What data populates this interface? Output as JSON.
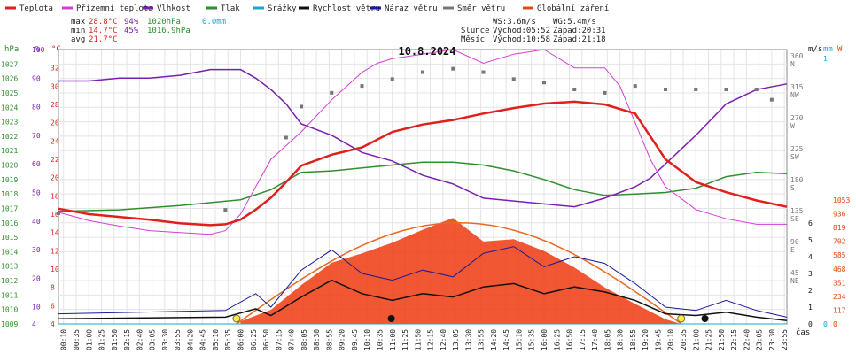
{
  "legend": [
    {
      "label": "Teplota",
      "color": "#e0201c"
    },
    {
      "label": "Přízemní teplota",
      "color": "#d43cd8"
    },
    {
      "label": "Vlhkost",
      "color": "#7a1fb0"
    },
    {
      "label": "Tlak",
      "color": "#2f8f2f"
    },
    {
      "label": "Srážky",
      "color": "#19a8d0"
    },
    {
      "label": "Rychlost větru",
      "color": "#111111"
    },
    {
      "label": "Náraz větru",
      "color": "#1a1a9c"
    },
    {
      "label": "Směr větru",
      "color": "#777777"
    },
    {
      "label": "Globální záření",
      "color": "#e04a10"
    }
  ],
  "stats": {
    "max": {
      "label": "max",
      "temp": "28.8°C",
      "hum": "94%",
      "press": "1020hPa",
      "rain": "0.0mm"
    },
    "min": {
      "label": "min",
      "temp": "14.7°C",
      "hum": "45%",
      "press": "1016.9hPa"
    },
    "avg": {
      "label": "avg",
      "temp": "21.7°C"
    }
  },
  "wind_info": {
    "ws": "WS:3.6m/s",
    "wg": "WG:5.4m/s"
  },
  "sun_info": {
    "label": "Slunce",
    "rise": "Východ:05:52",
    "set": "Západ:20:31"
  },
  "moon_info": {
    "label": "Měsíc",
    "rise": "Východ:10:58",
    "set": "Západ:21:18"
  },
  "chart_data": {
    "type": "line",
    "title": "10.8.2024",
    "xlabel": "čas",
    "x_ticks": [
      "00:10",
      "00:35",
      "01:00",
      "01:25",
      "01:50",
      "02:15",
      "02:40",
      "03:05",
      "03:30",
      "03:55",
      "04:20",
      "04:45",
      "05:10",
      "05:35",
      "06:00",
      "06:25",
      "06:50",
      "07:15",
      "07:40",
      "08:05",
      "08:30",
      "08:55",
      "09:20",
      "09:45",
      "10:10",
      "10:35",
      "11:00",
      "11:25",
      "11:50",
      "12:15",
      "12:40",
      "13:05",
      "13:30",
      "13:55",
      "14:20",
      "14:45",
      "15:10",
      "15:35",
      "16:00",
      "16:25",
      "16:50",
      "17:15",
      "17:40",
      "18:05",
      "18:30",
      "18:55",
      "19:20",
      "19:45",
      "20:10",
      "20:35",
      "21:00",
      "21:25",
      "21:50",
      "22:15",
      "22:40",
      "23:05",
      "23:30",
      "23:55"
    ],
    "x_tick_labels": [
      "00:10",
      "00:35",
      "01:00",
      "01:25",
      "01:50",
      "02:15",
      "02:40",
      "03:05",
      "03:30",
      "03:55",
      "04:20",
      "04:45",
      "05:10",
      "05:35",
      "06:00",
      "06:25",
      "06:50",
      "07:15",
      "07:40",
      "08:05",
      "08:30",
      "08:55",
      "09:20",
      "09:45",
      "10:10",
      "10:35",
      "11:00",
      "11:25",
      "11:50",
      "12:15",
      "12:40",
      "13:05",
      "13:30",
      "13:55",
      "14:20",
      "14:45",
      "15:10",
      "15:35",
      "16:00",
      "16:25",
      "16:50",
      "17:15",
      "17:40",
      "18:05",
      "18:30",
      "18:55",
      "19:20",
      "19:45",
      "20:10",
      "20:35",
      "21:00",
      "21:25",
      "21:50",
      "22:15",
      "22:40",
      "23:05",
      "23:30",
      "23:55"
    ],
    "axes": {
      "pressure": {
        "unit": "hPa",
        "range": [
          1009,
          1028
        ],
        "ticks": [
          "1009",
          "1010",
          "1011",
          "1012",
          "1013",
          "1014",
          "1015",
          "1016",
          "1017",
          "1018",
          "1019",
          "1020",
          "1021",
          "1022",
          "1023",
          "1024",
          "1025",
          "1026",
          "1027"
        ]
      },
      "humidity": {
        "unit": "%",
        "range": [
          4,
          100
        ],
        "ticks": [
          "4",
          "8",
          "12",
          "16",
          "20",
          "24",
          "28",
          "32",
          "36",
          "40",
          "44",
          "48",
          "52",
          "56",
          "60",
          "64",
          "68",
          "72",
          "76",
          "80",
          "84",
          "88",
          "92",
          "96",
          "100"
        ],
        "shown": [
          "4",
          "10",
          "20",
          "30",
          "40",
          "50",
          "60",
          "70",
          "80",
          "90",
          "100"
        ]
      },
      "temperature": {
        "unit": "°C",
        "range": [
          4,
          34
        ],
        "ticks": [
          "4",
          "6",
          "8",
          "10",
          "12",
          "14",
          "16",
          "18",
          "20",
          "22",
          "24",
          "26",
          "28",
          "30",
          "32"
        ]
      },
      "wind_dir": {
        "unit": "",
        "ticks": [
          {
            "deg": "45",
            "dir": "NE"
          },
          {
            "deg": "90",
            "dir": "E"
          },
          {
            "deg": "135",
            "dir": "SE"
          },
          {
            "deg": "180",
            "dir": "S"
          },
          {
            "deg": "225",
            "dir": "SW"
          },
          {
            "deg": "270",
            "dir": "W"
          },
          {
            "deg": "315",
            "dir": "NW"
          },
          {
            "deg": "360",
            "dir": "N"
          }
        ]
      },
      "wind_speed": {
        "unit": "m/s",
        "ticks": [
          "0",
          "1",
          "2",
          "3",
          "4",
          "5",
          "6"
        ]
      },
      "rain": {
        "unit": "mm",
        "ticks": [
          "0",
          "1"
        ]
      },
      "radiation": {
        "unit": "W",
        "ticks": [
          "0",
          "117",
          "234",
          "351",
          "468",
          "585",
          "702",
          "819",
          "936",
          "1053"
        ]
      }
    },
    "series": [
      {
        "name": "Teplota",
        "unit": "°C",
        "x": [
          0,
          1,
          2,
          3,
          4,
          5,
          5.5,
          6,
          6.5,
          7,
          7.5,
          8,
          9,
          10,
          11,
          12,
          13,
          14,
          15,
          16,
          17,
          18,
          19,
          20,
          21,
          22,
          23,
          24
        ],
        "y": [
          16.6,
          16.0,
          15.7,
          15.4,
          15.0,
          14.8,
          14.9,
          15.4,
          16.5,
          17.8,
          19.5,
          21.3,
          22.5,
          23.3,
          25.0,
          25.8,
          26.3,
          27.0,
          27.6,
          28.1,
          28.3,
          28.0,
          27.0,
          22.0,
          19.5,
          18.4,
          17.5,
          16.8
        ]
      },
      {
        "name": "Přízemní teplota",
        "unit": "°C",
        "x": [
          0,
          1,
          2,
          3,
          4,
          5,
          5.5,
          6,
          6.5,
          7,
          7.5,
          8,
          9,
          9.5,
          10,
          10.5,
          11,
          12,
          13,
          14,
          15,
          16,
          17,
          18,
          18.5,
          19,
          19.5,
          20,
          21,
          22,
          23,
          24
        ],
        "y": [
          16.2,
          15.3,
          14.7,
          14.2,
          14.0,
          13.8,
          14.2,
          16.0,
          19.0,
          22.0,
          23.5,
          25.0,
          28.5,
          30.0,
          31.5,
          32.5,
          33.0,
          33.5,
          34.0,
          32.5,
          33.5,
          34.0,
          32.0,
          32.0,
          30.0,
          26.0,
          22.0,
          19.0,
          16.5,
          15.5,
          14.9,
          14.9
        ]
      },
      {
        "name": "Vlhkost",
        "unit": "%",
        "x": [
          0,
          1,
          2,
          3,
          4,
          5,
          6,
          6.5,
          7,
          7.5,
          8,
          9,
          10,
          11,
          12,
          13,
          14,
          15,
          16,
          17,
          18,
          19,
          19.5,
          20,
          21,
          22,
          23,
          24
        ],
        "y": [
          89,
          89,
          90,
          90,
          91,
          93,
          93,
          90,
          86,
          81,
          74,
          70,
          64,
          61,
          56,
          53,
          48,
          47,
          46,
          45,
          48,
          52,
          55,
          60,
          70,
          81,
          86,
          88
        ]
      },
      {
        "name": "Tlak",
        "unit": "hPa",
        "x": [
          0,
          2,
          4,
          6,
          7,
          8,
          9,
          10,
          11,
          12,
          13,
          14,
          15,
          16,
          17,
          18,
          19,
          20,
          21,
          22,
          23,
          24
        ],
        "y": [
          1016.8,
          1016.9,
          1017.2,
          1017.6,
          1018.3,
          1019.5,
          1019.6,
          1019.8,
          1020.0,
          1020.2,
          1020.2,
          1020.0,
          1019.6,
          1019.0,
          1018.3,
          1017.9,
          1018.0,
          1018.1,
          1018.4,
          1019.2,
          1019.5,
          1019.4
        ]
      },
      {
        "name": "Srážky",
        "unit": "mm",
        "x": [
          0,
          24
        ],
        "y": [
          0,
          0
        ]
      },
      {
        "name": "Rychlost větru",
        "unit": "m/s",
        "x": [
          0,
          5.5,
          6.5,
          7,
          8,
          9,
          10,
          11,
          12,
          13,
          14,
          15,
          16,
          17,
          18,
          19,
          20,
          21,
          22,
          23,
          24
        ],
        "y": [
          0.3,
          0.4,
          0.9,
          0.5,
          1.6,
          2.6,
          1.8,
          1.4,
          1.8,
          1.6,
          2.2,
          2.4,
          1.8,
          2.2,
          1.9,
          1.4,
          0.6,
          0.5,
          0.7,
          0.4,
          0.2
        ]
      },
      {
        "name": "Náraz větru",
        "unit": "m/s",
        "x": [
          0,
          5.5,
          6.5,
          7,
          8,
          9,
          10,
          11,
          12,
          13,
          14,
          15,
          16,
          17,
          18,
          19,
          20,
          21,
          22,
          23,
          24
        ],
        "y": [
          0.6,
          0.8,
          1.8,
          1.0,
          3.2,
          4.4,
          3.0,
          2.6,
          3.2,
          2.8,
          4.2,
          4.6,
          3.4,
          4.0,
          3.6,
          2.4,
          1.0,
          0.8,
          1.4,
          0.8,
          0.4
        ]
      },
      {
        "name": "Směr větru",
        "unit": "°",
        "x": [
          0,
          5.5,
          7.5,
          8,
          9,
          10,
          11,
          12,
          13,
          14,
          15,
          16,
          17,
          18,
          19,
          20,
          21,
          22,
          23,
          23.5
        ],
        "y": [
          135,
          140,
          245,
          290,
          310,
          320,
          330,
          340,
          345,
          340,
          330,
          325,
          315,
          310,
          320,
          315,
          315,
          315,
          315,
          300
        ]
      },
      {
        "name": "Globální záření",
        "unit": "W",
        "x": [
          6,
          7,
          8,
          9,
          10,
          11,
          12,
          13,
          14,
          15,
          16,
          17,
          18,
          19,
          20,
          20.5
        ],
        "y": [
          20,
          120,
          330,
          520,
          600,
          690,
          800,
          900,
          700,
          720,
          620,
          480,
          310,
          170,
          40,
          0
        ]
      }
    ],
    "markers": {
      "sunrise": "05:52",
      "sunset": "20:31",
      "moonrise": "10:58",
      "moonset": "21:18"
    }
  }
}
